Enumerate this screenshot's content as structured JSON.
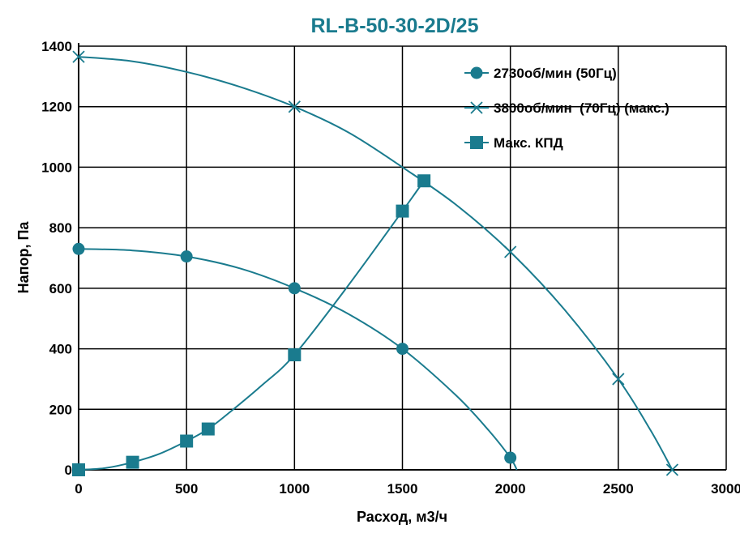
{
  "chart_data": {
    "type": "line",
    "title": "RL-B-50-30-2D/25",
    "xlabel": "Расход, м3/ч",
    "ylabel": "Напор, Па",
    "xlim": [
      0,
      3000
    ],
    "ylim": [
      0,
      1400
    ],
    "x_ticks": [
      0,
      500,
      1000,
      1500,
      2000,
      2500,
      3000
    ],
    "y_ticks": [
      0,
      200,
      400,
      600,
      800,
      1000,
      1200,
      1400
    ],
    "grid": true,
    "legend_position": "top-right",
    "colors": {
      "series": "#1a7b8e",
      "title": "#1a7b8e",
      "grid": "#000000"
    },
    "series": [
      {
        "name": "2730об/мин (50Гц)",
        "marker": "circle",
        "points": [
          [
            0,
            730
          ],
          [
            500,
            705
          ],
          [
            1000,
            600
          ],
          [
            1500,
            400
          ],
          [
            2000,
            40
          ]
        ],
        "curve": [
          [
            0,
            730
          ],
          [
            250,
            725
          ],
          [
            500,
            705
          ],
          [
            750,
            665
          ],
          [
            1000,
            600
          ],
          [
            1250,
            515
          ],
          [
            1500,
            400
          ],
          [
            1750,
            245
          ],
          [
            1900,
            130
          ],
          [
            2000,
            40
          ],
          [
            2030,
            0
          ]
        ]
      },
      {
        "name": "3800об/мин  (70Гц) (макс.)",
        "marker": "x",
        "points": [
          [
            0,
            1365
          ],
          [
            1000,
            1200
          ],
          [
            2000,
            720
          ],
          [
            2500,
            300
          ],
          [
            2750,
            0
          ]
        ],
        "curve": [
          [
            0,
            1365
          ],
          [
            250,
            1350
          ],
          [
            500,
            1315
          ],
          [
            750,
            1265
          ],
          [
            1000,
            1200
          ],
          [
            1250,
            1115
          ],
          [
            1500,
            1000
          ],
          [
            1750,
            875
          ],
          [
            2000,
            720
          ],
          [
            2250,
            530
          ],
          [
            2500,
            300
          ],
          [
            2650,
            130
          ],
          [
            2750,
            0
          ]
        ]
      },
      {
        "name": "Макс. КПД",
        "marker": "square",
        "points": [
          [
            0,
            0
          ],
          [
            250,
            25
          ],
          [
            500,
            95
          ],
          [
            600,
            135
          ],
          [
            1000,
            380
          ],
          [
            1500,
            855
          ],
          [
            1600,
            955
          ]
        ],
        "curve": [
          [
            0,
            0
          ],
          [
            125,
            6
          ],
          [
            250,
            25
          ],
          [
            375,
            53
          ],
          [
            500,
            95
          ],
          [
            600,
            135
          ],
          [
            700,
            190
          ],
          [
            850,
            280
          ],
          [
            1000,
            380
          ],
          [
            1250,
            610
          ],
          [
            1500,
            855
          ],
          [
            1600,
            955
          ]
        ]
      }
    ]
  }
}
